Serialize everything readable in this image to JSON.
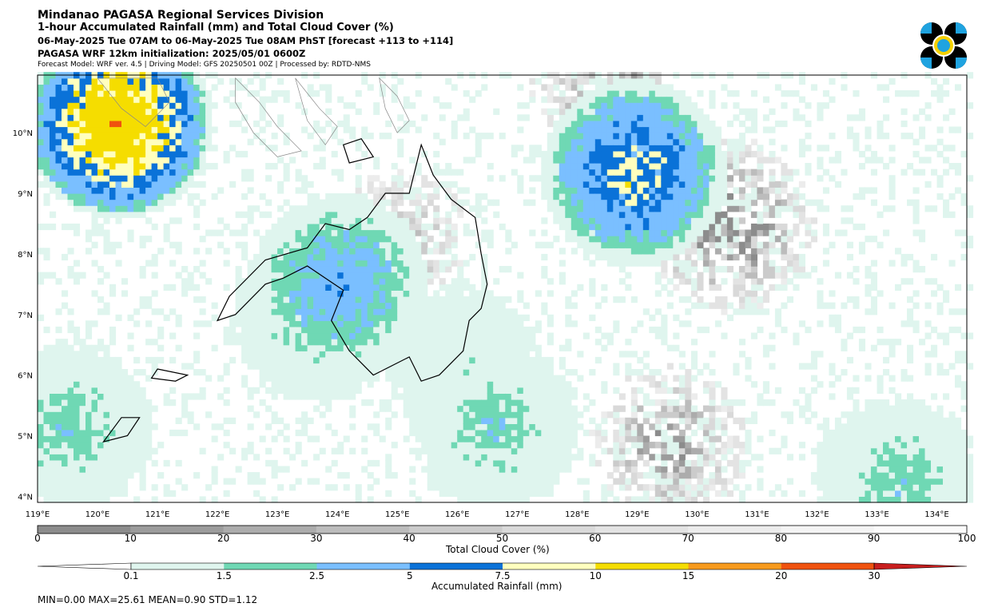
{
  "header": {
    "title": "Mindanao PAGASA Regional Services Division",
    "subtitle": "1-hour Accumulated Rainfall (mm) and Total Cloud Cover (%)",
    "valid_time": "06-May-2025 Tue 07AM to 06-May-2025 Tue 08AM PhST [forecast +113 to +114]",
    "initialization": "PAGASA WRF 12km initialization: 2025/05/01 0600Z",
    "model_info": "Forecast Model: WRF ver. 4.5 | Driving Model: GFS 20250501 00Z | Processed by: RDTD-NMS"
  },
  "logo": {
    "name": "pagasa-logo",
    "colors": [
      "#000000",
      "#1fa3e0",
      "#f5d000"
    ]
  },
  "map": {
    "lon_range": [
      119,
      134.5
    ],
    "lat_range": [
      3.9,
      10.95
    ],
    "lon_ticks": [
      "119°E",
      "120°E",
      "121°E",
      "122°E",
      "123°E",
      "124°E",
      "125°E",
      "126°E",
      "127°E",
      "128°E",
      "129°E",
      "130°E",
      "131°E",
      "132°E",
      "133°E",
      "134°E"
    ],
    "lat_ticks": [
      "4°N",
      "5°N",
      "6°N",
      "7°N",
      "8°N",
      "9°N",
      "10°N"
    ]
  },
  "cloud_colorbar": {
    "label": "Total Cloud Cover (%)",
    "ticks": [
      "0",
      "10",
      "20",
      "30",
      "40",
      "50",
      "60",
      "70",
      "80",
      "90",
      "100"
    ],
    "colors": [
      "#8c8c8c",
      "#9c9c9c",
      "#acacac",
      "#bcbcbc",
      "#cbcbcb",
      "#d9d9d9",
      "#e3e3e3",
      "#ececec",
      "#f4f4f4",
      "#fbfbfb"
    ]
  },
  "rain_colorbar": {
    "label": "Accumulated Rainfall (mm)",
    "ticks": [
      "0.1",
      "1.5",
      "2.5",
      "5",
      "7.5",
      "10",
      "15",
      "20",
      "30"
    ],
    "colors": [
      "#dff5ee",
      "#6fd8b4",
      "#7abfff",
      "#0a72d8",
      "#ffffbe",
      "#f5dd00",
      "#f79a1c",
      "#f0520e",
      "#c81e1e"
    ]
  },
  "chart_data": {
    "type": "heatmap",
    "title": "1-hour Accumulated Rainfall (mm) and Total Cloud Cover (%)",
    "xlabel": "",
    "ylabel": "",
    "xlim": [
      119,
      134.5
    ],
    "ylim": [
      3.9,
      10.95
    ],
    "stats": {
      "min": 0.0,
      "max": 25.61,
      "mean": 0.9,
      "std": 1.12
    },
    "rain_regions_mm": [
      {
        "lon": 119.5,
        "lat": 5.1,
        "value": 2.5
      },
      {
        "lon": 123.6,
        "lat": 6.9,
        "value": 2.5
      },
      {
        "lon": 126.6,
        "lat": 5.1,
        "value": 2.5
      },
      {
        "lon": 133.3,
        "lat": 4.2,
        "value": 2.5
      },
      {
        "lon": 126.0,
        "lat": 6.2,
        "value": 1.5
      },
      {
        "lon": 120.3,
        "lat": 10.1,
        "value": 20
      },
      {
        "lon": 124.0,
        "lat": 7.45,
        "value": 5
      },
      {
        "lon": 128.9,
        "lat": 9.3,
        "value": 10
      }
    ],
    "cloud_regions_pct": [
      {
        "lon": 125.0,
        "lat": 8.2,
        "value": 30
      },
      {
        "lon": 128.5,
        "lat": 10.6,
        "value": 40
      },
      {
        "lon": 130.5,
        "lat": 8.4,
        "value": 50
      },
      {
        "lon": 129.5,
        "lat": 4.8,
        "value": 40
      }
    ]
  },
  "stats_text": "MIN=0.00   MAX=25.61   MEAN=0.90   STD=1.12"
}
